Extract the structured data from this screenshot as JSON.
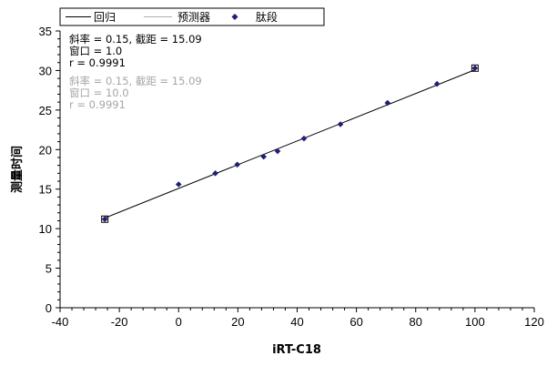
{
  "chart_data": {
    "type": "scatter",
    "xlabel": "iRT-C18",
    "ylabel": "测量时间",
    "xlim": [
      -40,
      120
    ],
    "ylim": [
      0,
      35
    ],
    "x_ticks": [
      "-40",
      "-20",
      "0",
      "20",
      "40",
      "60",
      "80",
      "100",
      "120"
    ],
    "y_ticks": [
      "0",
      "5",
      "10",
      "15",
      "20",
      "25",
      "30",
      "35"
    ],
    "grid": false,
    "legend_position": "top-left",
    "legend": [
      "回归",
      "预测器",
      "肽段"
    ],
    "series": [
      {
        "name": "肽段",
        "marker": "diamond",
        "color": "#1f1f7a",
        "x": [
          -24.9,
          0.0,
          12.4,
          19.8,
          28.7,
          33.4,
          42.3,
          54.6,
          70.5,
          87.2,
          100.0
        ],
        "y": [
          11.2,
          15.6,
          17.0,
          18.1,
          19.1,
          19.8,
          21.4,
          23.2,
          25.9,
          28.3,
          30.3
        ]
      },
      {
        "name": "回归",
        "type": "line",
        "color": "#000000",
        "x": [
          -24.9,
          100.0
        ],
        "y": [
          11.35,
          30.09
        ]
      }
    ],
    "outliers": [
      {
        "x": -24.9,
        "y": 11.2
      },
      {
        "x": 100.0,
        "y": 30.3
      }
    ],
    "annotations": {
      "regression": [
        "斜率 = 0.15, 截距 = 15.09",
        "窗口 = 1.0",
        "r = 0.9991"
      ],
      "predictor": [
        "斜率 = 0.15, 截距 = 15.09",
        "窗口 = 10.0",
        "r = 0.9991"
      ]
    },
    "colors": {
      "regression": "#000000",
      "predictor": "#a6a6a6",
      "points": "#1f1f7a"
    }
  }
}
